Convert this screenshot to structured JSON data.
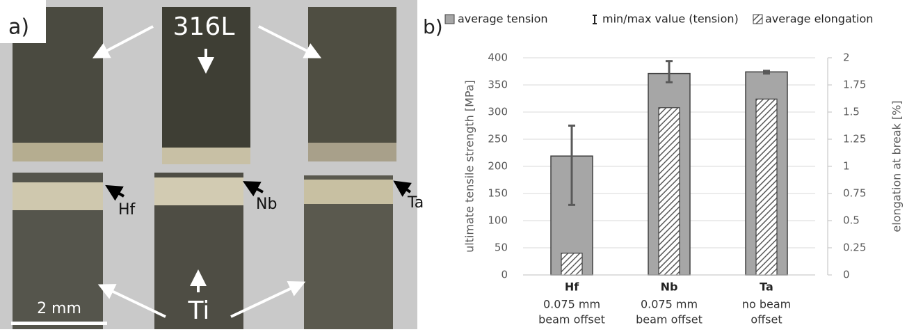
{
  "photo": {
    "panel_label": "a)",
    "top_label": "316L",
    "bottom_label": "Ti",
    "markers": [
      "Hf",
      "Nb",
      "Ta"
    ],
    "scale_label": "2 mm"
  },
  "chart_data": {
    "type": "bar",
    "panel_label": "b)",
    "categories": [
      "Hf",
      "Nb",
      "Ta"
    ],
    "category_details": [
      [
        "0.075 mm",
        "beam offset"
      ],
      [
        "0.075 mm",
        "beam offset"
      ],
      [
        "no beam",
        "offset"
      ]
    ],
    "series": [
      {
        "name": "average tension",
        "color": "#a6a6a6",
        "values": [
          219,
          371,
          374
        ]
      },
      {
        "name": "min/max value (tension)",
        "color": "#595959",
        "min": [
          129,
          355,
          371
        ],
        "max": [
          275,
          394,
          376
        ]
      },
      {
        "name": "average elongation",
        "color": "#595959",
        "axis": "y2",
        "values": [
          0.2,
          1.54,
          1.62
        ]
      }
    ],
    "y_label": "ultimate tensile strength [MPa]",
    "y2_label": "elongation at break [%]",
    "ylim": [
      0,
      400
    ],
    "yticks": [
      0,
      50,
      100,
      150,
      200,
      250,
      300,
      350,
      400
    ],
    "y2lim": [
      0,
      2
    ],
    "y2ticks": [
      0,
      0.25,
      0.5,
      0.75,
      1,
      1.25,
      1.5,
      1.75,
      2
    ],
    "grid": true,
    "legend": "top"
  }
}
